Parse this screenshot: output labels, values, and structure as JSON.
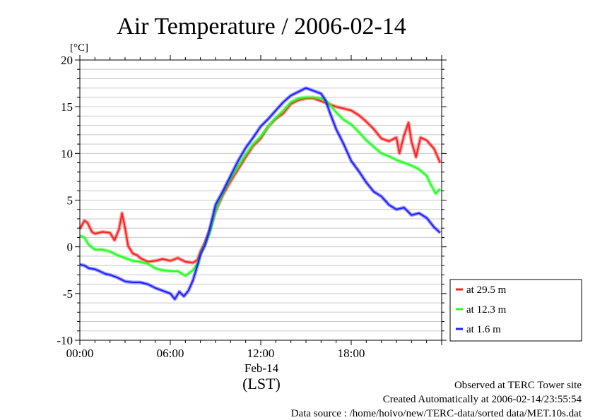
{
  "chart_data": {
    "type": "line",
    "title": "Air Temperature / 2006-02-14",
    "y_unit": "[°C]",
    "ylim": [
      -10,
      20
    ],
    "y_ticks": [
      -10,
      -5,
      0,
      5,
      10,
      15,
      20
    ],
    "y_tick_labels": [
      "-10",
      "-5",
      "0",
      "5",
      "10",
      "15",
      "20"
    ],
    "xlim_hours": [
      0,
      24
    ],
    "x_ticks_hours": [
      0,
      6,
      12,
      18
    ],
    "x_tick_labels": [
      "00:00",
      "06:00",
      "12:00",
      "18:00"
    ],
    "x_date_label": "Feb-14",
    "xlabel": "(LST)",
    "grid": "horizontal, every 1 °C",
    "legend_position": "right",
    "series": [
      {
        "name": "at 29.5 m",
        "color": "#ff2020",
        "x": [
          0,
          0.3,
          0.5,
          0.8,
          1.0,
          1.5,
          2.0,
          2.3,
          2.6,
          2.8,
          3.0,
          3.2,
          3.5,
          3.8,
          4.0,
          4.5,
          5.0,
          5.5,
          6.0,
          6.5,
          7.0,
          7.5,
          7.8,
          8.0,
          8.3,
          8.6,
          9.0,
          9.5,
          10.0,
          10.5,
          11.0,
          11.5,
          12.0,
          12.5,
          13.0,
          13.5,
          14.0,
          14.5,
          15.0,
          15.5,
          16.0,
          16.5,
          17.0,
          17.5,
          18.0,
          18.5,
          19.0,
          19.5,
          20.0,
          20.5,
          21.0,
          21.2,
          21.5,
          21.8,
          22.0,
          22.3,
          22.6,
          23.0,
          23.5,
          23.9
        ],
        "y": [
          1.9,
          2.8,
          2.6,
          1.6,
          1.4,
          1.6,
          1.5,
          0.7,
          1.9,
          3.6,
          2.0,
          0.1,
          -0.7,
          -0.9,
          -1.2,
          -1.6,
          -1.5,
          -1.3,
          -1.5,
          -1.2,
          -1.6,
          -1.7,
          -1.4,
          -0.5,
          0.5,
          1.7,
          3.8,
          5.6,
          7.0,
          8.3,
          9.6,
          10.8,
          11.6,
          12.9,
          13.7,
          14.3,
          15.3,
          15.7,
          15.9,
          15.9,
          15.6,
          15.3,
          15.0,
          14.8,
          14.6,
          14.1,
          13.4,
          12.6,
          11.6,
          11.3,
          11.7,
          10.0,
          11.9,
          13.3,
          11.3,
          9.6,
          11.7,
          11.4,
          10.5,
          9.0
        ]
      },
      {
        "name": "at 12.3 m",
        "color": "#20ff20",
        "x": [
          0,
          0.3,
          0.6,
          1.0,
          1.5,
          2.0,
          2.5,
          3.0,
          3.5,
          4.0,
          4.5,
          5.0,
          5.5,
          6.0,
          6.5,
          7.0,
          7.5,
          7.8,
          8.0,
          8.3,
          8.6,
          9.0,
          9.5,
          10.0,
          10.5,
          11.0,
          11.5,
          12.0,
          12.5,
          13.0,
          13.5,
          14.0,
          14.5,
          15.0,
          15.5,
          16.0,
          16.5,
          17.0,
          17.5,
          18.0,
          18.5,
          19.0,
          19.5,
          20.0,
          20.5,
          21.0,
          21.5,
          22.0,
          22.5,
          23.0,
          23.3,
          23.6,
          23.9
        ],
        "y": [
          1.2,
          1.0,
          0.2,
          -0.3,
          -0.3,
          -0.5,
          -0.9,
          -1.2,
          -1.5,
          -1.6,
          -1.8,
          -2.3,
          -2.5,
          -2.6,
          -2.6,
          -3.1,
          -2.5,
          -1.8,
          -0.8,
          0.3,
          1.4,
          3.9,
          5.8,
          7.3,
          8.6,
          9.9,
          11.0,
          11.8,
          12.9,
          13.8,
          14.6,
          15.5,
          15.9,
          16.0,
          16.0,
          15.9,
          15.4,
          14.4,
          13.6,
          13.1,
          12.3,
          11.4,
          10.7,
          10.0,
          9.7,
          9.3,
          9.0,
          8.7,
          8.3,
          7.6,
          6.6,
          5.7,
          6.2
        ]
      },
      {
        "name": "at 1.6 m",
        "color": "#2020ff",
        "x": [
          0,
          0.3,
          0.6,
          1.0,
          1.3,
          1.7,
          2.0,
          2.5,
          3.0,
          3.5,
          4.0,
          4.5,
          5.0,
          5.5,
          6.0,
          6.3,
          6.6,
          6.9,
          7.2,
          7.5,
          7.8,
          8.0,
          8.3,
          8.6,
          9.0,
          9.5,
          10.0,
          10.5,
          11.0,
          11.5,
          12.0,
          12.5,
          13.0,
          13.5,
          14.0,
          14.5,
          15.0,
          15.5,
          16.0,
          16.3,
          16.6,
          17.0,
          17.5,
          18.0,
          18.5,
          19.0,
          19.5,
          20.0,
          20.5,
          21.0,
          21.5,
          22.0,
          22.5,
          23.0,
          23.5,
          23.9
        ],
        "y": [
          -1.9,
          -2.0,
          -2.3,
          -2.4,
          -2.6,
          -2.9,
          -3.0,
          -3.3,
          -3.7,
          -3.8,
          -3.8,
          -4.0,
          -4.4,
          -4.7,
          -5.0,
          -5.6,
          -4.8,
          -5.3,
          -4.7,
          -3.6,
          -2.0,
          -0.8,
          0.2,
          1.8,
          4.5,
          6.0,
          7.6,
          9.2,
          10.6,
          11.7,
          12.9,
          13.7,
          14.6,
          15.5,
          16.2,
          16.6,
          17.0,
          16.7,
          16.4,
          15.7,
          14.3,
          12.6,
          11.0,
          9.2,
          8.1,
          6.9,
          5.9,
          5.4,
          4.5,
          4.0,
          4.2,
          3.4,
          3.6,
          3.1,
          2.1,
          1.5
        ]
      }
    ]
  },
  "footer": {
    "line1": "Observed at TERC Tower site",
    "line2": "Created Automatically at 2006-02-14/23:55:54",
    "line3": "Data source : /home/hoivo/new/TERC-data/sorted  data/MET.10s.dat"
  }
}
